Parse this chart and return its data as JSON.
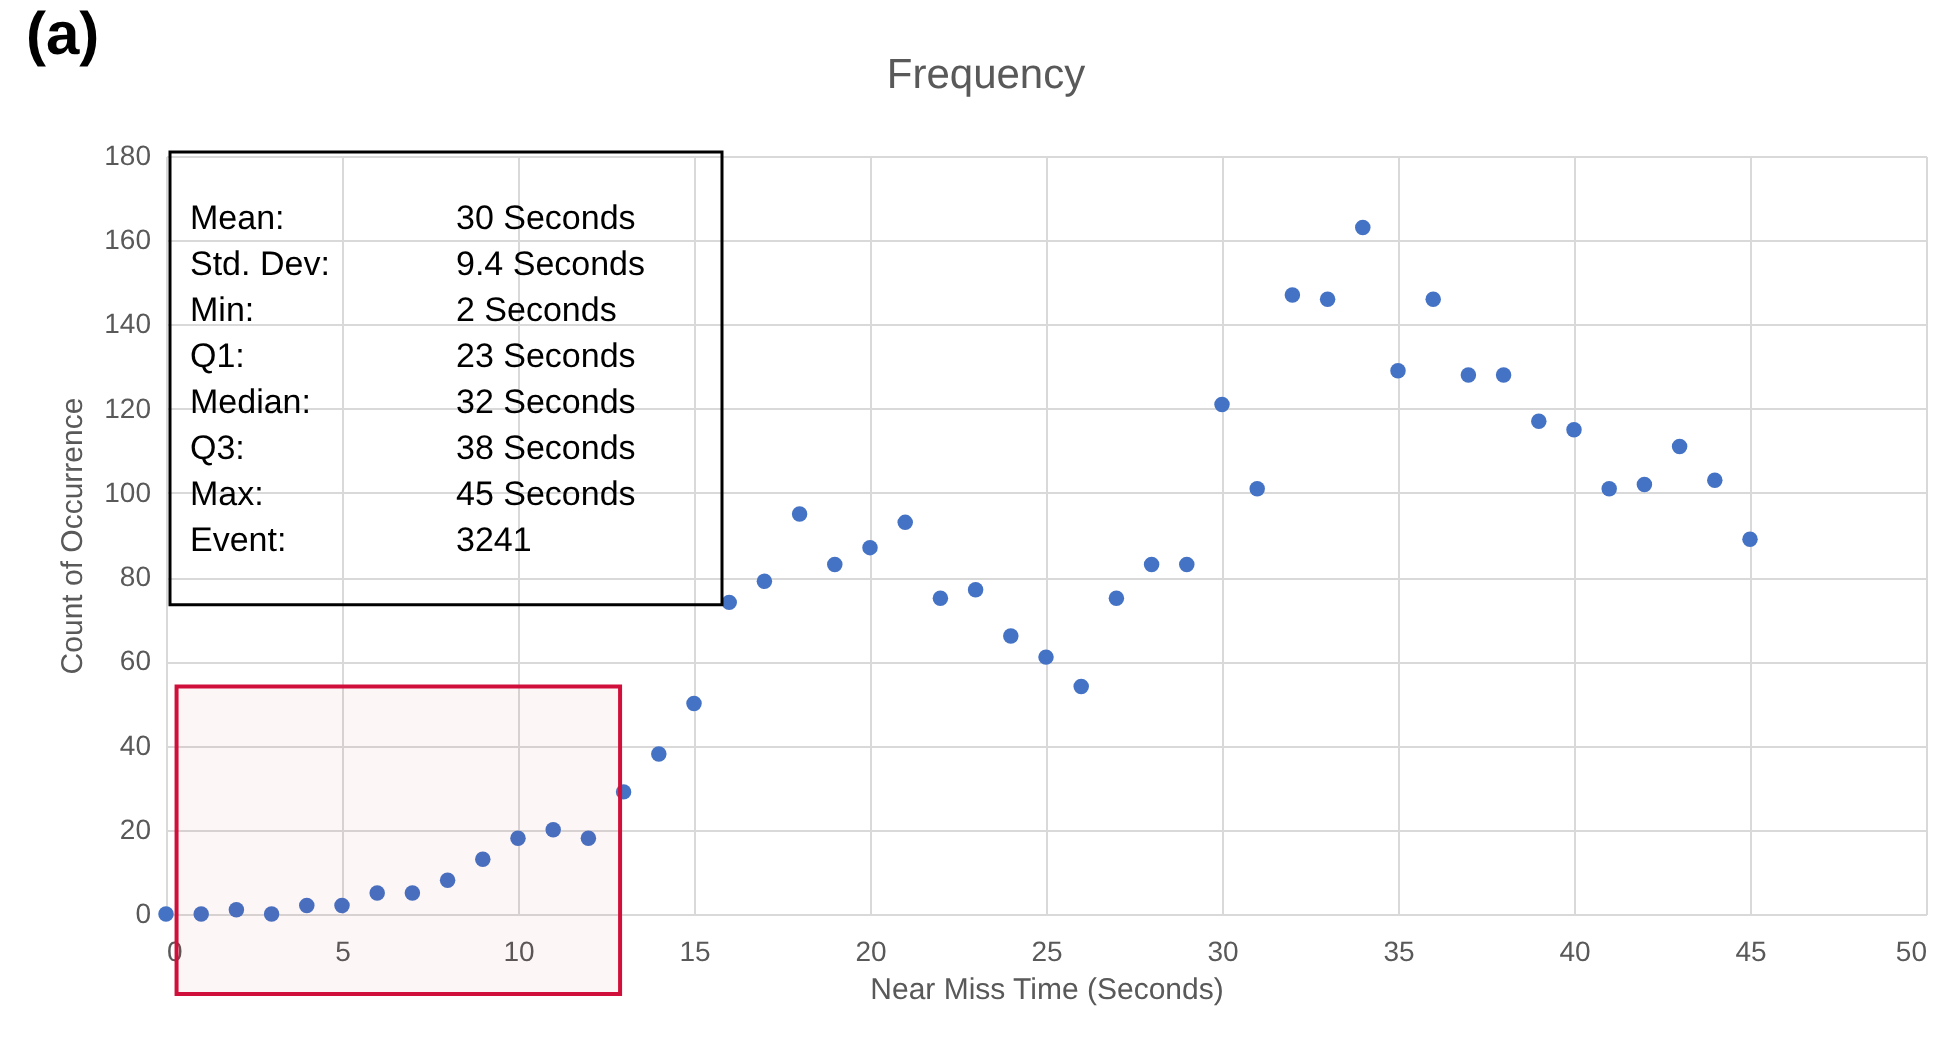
{
  "chart_data": {
    "type": "scatter",
    "title": "Frequency",
    "xlabel": "Near Miss Time (Seconds)",
    "ylabel": "Count of Occurrence",
    "x": [
      0,
      1,
      2,
      3,
      4,
      5,
      6,
      7,
      8,
      9,
      10,
      11,
      12,
      13,
      14,
      15,
      16,
      17,
      18,
      19,
      20,
      21,
      22,
      23,
      24,
      25,
      26,
      27,
      28,
      29,
      30,
      31,
      32,
      33,
      34,
      35,
      36,
      37,
      38,
      39,
      40,
      41,
      42,
      43,
      44,
      45
    ],
    "values": [
      0,
      0,
      1,
      0,
      2,
      2,
      5,
      5,
      8,
      13,
      18,
      20,
      18,
      29,
      38,
      50,
      74,
      79,
      95,
      83,
      87,
      93,
      75,
      77,
      66,
      61,
      54,
      75,
      83,
      83,
      121,
      101,
      147,
      146,
      163,
      129,
      146,
      128,
      128,
      117,
      115,
      101,
      102,
      111,
      103,
      89
    ],
    "color": "#4472c4",
    "marker": "circle",
    "xlim": [
      0,
      50
    ],
    "xticks": [
      0,
      5,
      10,
      15,
      20,
      25,
      30,
      35,
      40,
      45,
      50
    ],
    "ylim": [
      0,
      180
    ],
    "yticks": [
      0,
      20,
      40,
      60,
      80,
      100,
      120,
      140,
      160,
      180
    ],
    "grid": true,
    "bands": [
      {
        "axis": "x",
        "from": 0.3,
        "to": 12.9,
        "color": "#d0103a"
      }
    ],
    "annotations": [
      "(a)",
      "Mean:",
      "30 Seconds",
      "Std. Dev:",
      "9.4 Seconds",
      "Min:",
      "2 Seconds",
      "Q1:",
      "23 Seconds",
      "Median:",
      "32 Seconds",
      "Q3:",
      "38 Seconds",
      "Max:",
      "45 Seconds",
      "Event:",
      "3241"
    ]
  }
}
